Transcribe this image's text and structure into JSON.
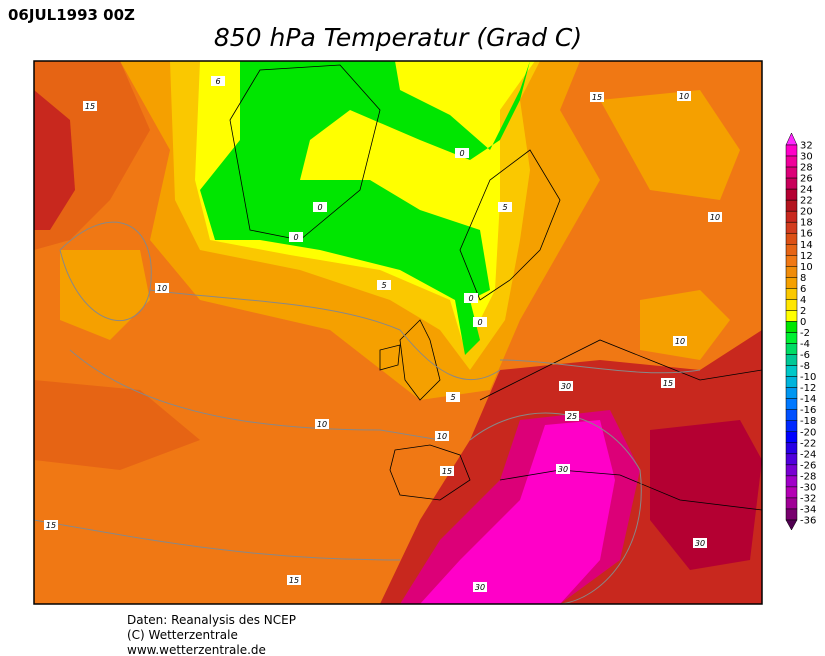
{
  "header": {
    "timestamp": "06JUL1993 00Z",
    "title": "850 hPa Temperatur (Grad C)"
  },
  "colorbar": {
    "labels": [
      "32",
      "30",
      "28",
      "26",
      "24",
      "22",
      "20",
      "18",
      "16",
      "14",
      "12",
      "10",
      "8",
      "6",
      "4",
      "2",
      "0",
      "-2",
      "-4",
      "-6",
      "-8",
      "-10",
      "-12",
      "-14",
      "-16",
      "-18",
      "-20",
      "-22",
      "-24",
      "-26",
      "-28",
      "-30",
      "-32",
      "-34",
      "-36"
    ],
    "colors": [
      "#ff28ff",
      "#ff00c8",
      "#f0009a",
      "#dc0078",
      "#c8005a",
      "#b40032",
      "#b4141e",
      "#c8281e",
      "#d23c1e",
      "#dc5014",
      "#e66414",
      "#f07814",
      "#f08c0a",
      "#f5a000",
      "#fac800",
      "#ffe600",
      "#ffff00",
      "#00e600",
      "#00f032",
      "#00dc64",
      "#00c896",
      "#00c8c8",
      "#00b4dc",
      "#0096f0",
      "#0078ff",
      "#0050ff",
      "#0028ff",
      "#0000ff",
      "#2800e6",
      "#5000dc",
      "#7800d2",
      "#a000c8",
      "#b400b4",
      "#a00096",
      "#78006e",
      "#500050"
    ]
  },
  "contour_labels": [
    "15",
    "6",
    "15",
    "10",
    "0",
    "0",
    "0",
    "5",
    "10",
    "10",
    "5",
    "0",
    "0",
    "10",
    "30",
    "15",
    "25",
    "5",
    "10",
    "10",
    "15",
    "30",
    "15",
    "30",
    "30",
    "15"
  ],
  "footer": {
    "lines": [
      "Daten: Reanalysis des NCEP",
      "(C) Wetterzentrale",
      "www.wetterzentrale.de"
    ]
  }
}
